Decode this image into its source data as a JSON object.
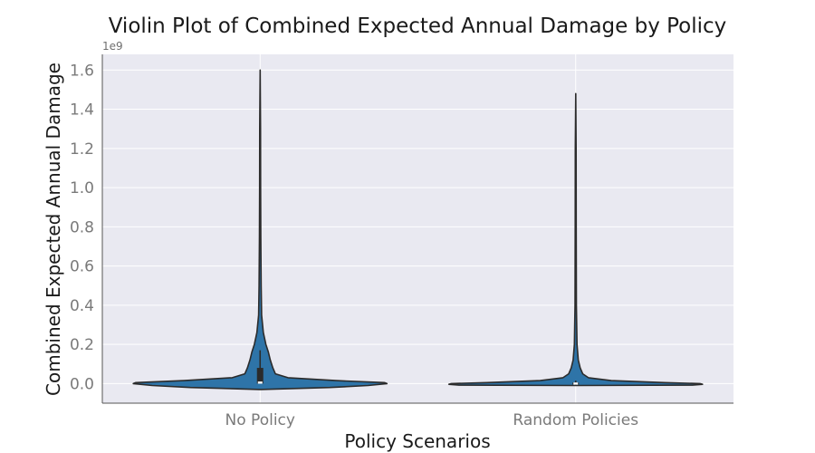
{
  "chart_data": {
    "type": "violin",
    "title": "Violin Plot of Combined Expected Annual Damage by Policy",
    "xlabel": "Policy Scenarios",
    "ylabel": "Combined Expected Annual Damage",
    "y_offset_label": "1e9",
    "ylim": [
      -0.1,
      1.68
    ],
    "yticks": [
      0.0,
      0.2,
      0.4,
      0.6,
      0.8,
      1.0,
      1.2,
      1.4,
      1.6
    ],
    "ytick_labels": [
      "0.0",
      "0.2",
      "0.4",
      "0.6",
      "0.8",
      "1.0",
      "1.2",
      "1.4",
      "1.6"
    ],
    "categories": [
      "No Policy",
      "Random Policies"
    ],
    "grid": true,
    "violin_color": "#2e74a8",
    "edge_color": "#2b2b2b",
    "background_color": "#e9e9f1",
    "series": [
      {
        "category": "No Policy",
        "min": -0.03,
        "max": 1.6,
        "q1": 0.0,
        "median": 0.005,
        "q3": 0.08,
        "whisker_low": 0.0,
        "whisker_high": 0.17,
        "density_profile": [
          [
            -0.03,
            0.0
          ],
          [
            -0.02,
            0.55
          ],
          [
            -0.01,
            0.85
          ],
          [
            0.0,
            1.0
          ],
          [
            0.005,
            0.98
          ],
          [
            0.015,
            0.6
          ],
          [
            0.03,
            0.22
          ],
          [
            0.05,
            0.12
          ],
          [
            0.08,
            0.1
          ],
          [
            0.12,
            0.08
          ],
          [
            0.16,
            0.065
          ],
          [
            0.2,
            0.045
          ],
          [
            0.26,
            0.025
          ],
          [
            0.35,
            0.012
          ],
          [
            0.5,
            0.008
          ],
          [
            0.75,
            0.005
          ],
          [
            1.0,
            0.004
          ],
          [
            1.3,
            0.003
          ],
          [
            1.6,
            0.0
          ]
        ]
      },
      {
        "category": "Random Policies",
        "min": -0.01,
        "max": 1.48,
        "q1": -0.005,
        "median": 0.0,
        "q3": 0.005,
        "whisker_low": -0.008,
        "whisker_high": 0.015,
        "density_profile": [
          [
            -0.01,
            0.0
          ],
          [
            -0.008,
            0.92
          ],
          [
            -0.004,
            1.0
          ],
          [
            0.0,
            0.98
          ],
          [
            0.005,
            0.7
          ],
          [
            0.015,
            0.28
          ],
          [
            0.03,
            0.1
          ],
          [
            0.05,
            0.055
          ],
          [
            0.08,
            0.035
          ],
          [
            0.12,
            0.02
          ],
          [
            0.2,
            0.01
          ],
          [
            0.4,
            0.005
          ],
          [
            0.8,
            0.004
          ],
          [
            1.2,
            0.003
          ],
          [
            1.48,
            0.0
          ]
        ]
      }
    ]
  }
}
